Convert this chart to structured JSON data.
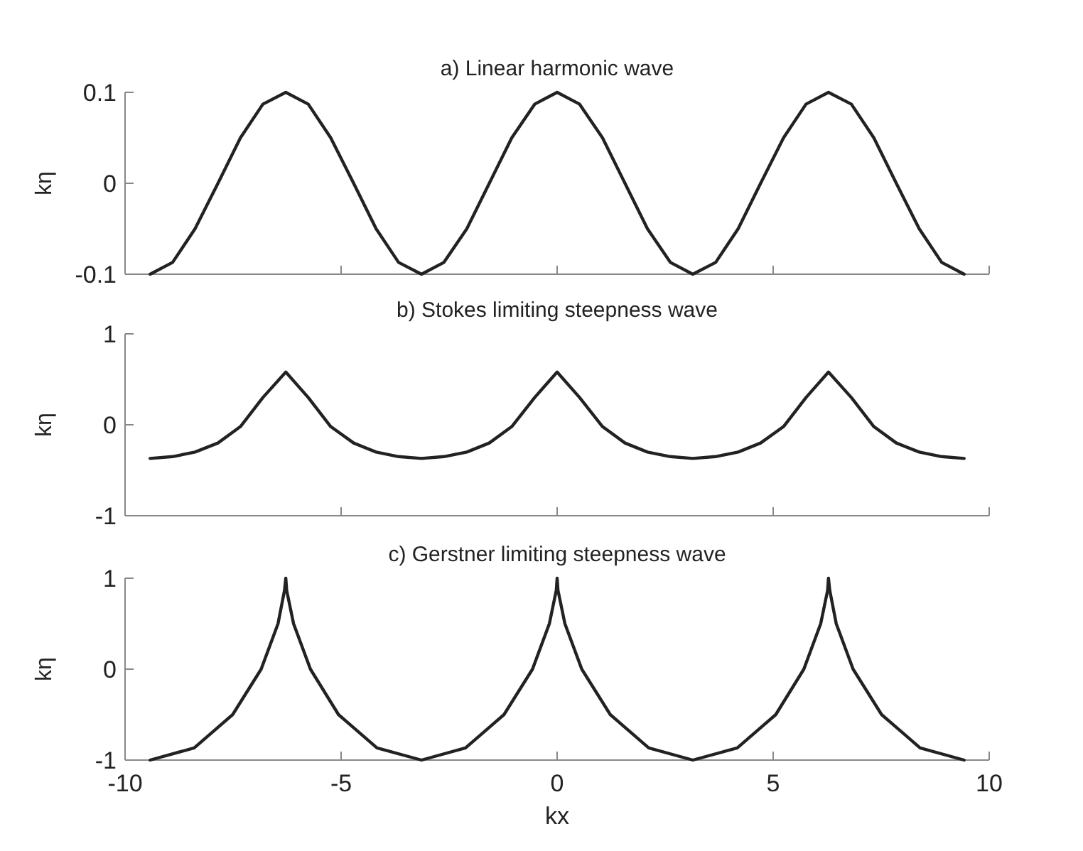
{
  "chart_data": [
    {
      "type": "line",
      "title": "a) Linear harmonic wave",
      "ylabel": "kη",
      "xlim": [
        -10,
        10
      ],
      "xticks": [
        -10,
        -5,
        0,
        5,
        10
      ],
      "ylim": [
        -0.1,
        0.1
      ],
      "yticks": [
        -0.1,
        0,
        0.1
      ],
      "tick_labels": "y",
      "series": [
        {
          "color": "#222222",
          "x": [
            -9.42,
            -8.9,
            -8.38,
            -7.85,
            -7.33,
            -6.81,
            -6.28,
            -5.76,
            -5.24,
            -4.71,
            -4.19,
            -3.67,
            -3.14,
            -2.62,
            -2.09,
            -1.57,
            -1.05,
            -0.52,
            0,
            0.52,
            1.05,
            1.57,
            2.09,
            2.62,
            3.14,
            3.67,
            4.19,
            4.71,
            5.24,
            5.76,
            6.28,
            6.81,
            7.33,
            7.85,
            8.38,
            8.9,
            9.42
          ],
          "values": [
            -0.1,
            -0.087,
            -0.05,
            0,
            0.05,
            0.087,
            0.1,
            0.087,
            0.05,
            0,
            -0.05,
            -0.087,
            -0.1,
            -0.087,
            -0.05,
            0,
            0.05,
            0.087,
            0.1,
            0.087,
            0.05,
            0,
            -0.05,
            -0.087,
            -0.1,
            -0.087,
            -0.05,
            0,
            0.05,
            0.087,
            0.1,
            0.087,
            0.05,
            0,
            -0.05,
            -0.087,
            -0.1
          ]
        }
      ]
    },
    {
      "type": "line",
      "title": "b) Stokes limiting steepness wave",
      "ylabel": "kη",
      "xlim": [
        -10,
        10
      ],
      "xticks": [
        -10,
        -5,
        0,
        5,
        10
      ],
      "ylim": [
        -1,
        1
      ],
      "yticks": [
        -1,
        0,
        1
      ],
      "tick_labels": "y",
      "series": [
        {
          "color": "#222222",
          "x": [
            -9.42,
            -8.9,
            -8.38,
            -7.85,
            -7.33,
            -6.81,
            -6.28,
            -5.76,
            -5.24,
            -4.71,
            -4.19,
            -3.67,
            -3.14,
            -2.62,
            -2.09,
            -1.57,
            -1.05,
            -0.52,
            0,
            0.52,
            1.05,
            1.57,
            2.09,
            2.62,
            3.14,
            3.67,
            4.19,
            4.71,
            5.24,
            5.76,
            6.28,
            6.81,
            7.33,
            7.85,
            8.38,
            8.9,
            9.42
          ],
          "values": [
            -0.37,
            -0.35,
            -0.3,
            -0.2,
            -0.02,
            0.3,
            0.58,
            0.3,
            -0.02,
            -0.2,
            -0.3,
            -0.35,
            -0.37,
            -0.35,
            -0.3,
            -0.2,
            -0.02,
            0.3,
            0.58,
            0.3,
            -0.02,
            -0.2,
            -0.3,
            -0.35,
            -0.37,
            -0.35,
            -0.3,
            -0.2,
            -0.02,
            0.3,
            0.58,
            0.3,
            -0.02,
            -0.2,
            -0.3,
            -0.35,
            -0.37
          ]
        }
      ]
    },
    {
      "type": "line",
      "title": "c) Gerstner limiting steepness wave",
      "xlabel": "kx",
      "ylabel": "kη",
      "xlim": [
        -10,
        10
      ],
      "xticks": [
        -10,
        -5,
        0,
        5,
        10
      ],
      "ylim": [
        -1,
        1
      ],
      "yticks": [
        -1,
        0,
        1
      ],
      "series": [
        {
          "color": "#222222",
          "x": [
            -9.42,
            -8.4,
            -7.51,
            -6.85,
            -6.46,
            -6.31,
            -6.28,
            -6.26,
            -6.1,
            -5.71,
            -5.06,
            -4.17,
            -3.14,
            -2.12,
            -1.23,
            -0.57,
            -0.18,
            -0.02,
            0,
            0.02,
            0.18,
            0.57,
            1.23,
            2.12,
            3.14,
            4.17,
            5.06,
            5.71,
            6.1,
            6.26,
            6.28,
            6.31,
            6.46,
            6.85,
            7.51,
            8.4,
            9.42
          ],
          "values": [
            -1,
            -0.866,
            -0.5,
            0,
            0.5,
            0.866,
            1,
            0.866,
            0.5,
            0,
            -0.5,
            -0.866,
            -1,
            -0.866,
            -0.5,
            0,
            0.5,
            0.866,
            1,
            0.866,
            0.5,
            0,
            -0.5,
            -0.866,
            -1,
            -0.866,
            -0.5,
            0,
            0.5,
            0.866,
            1,
            0.866,
            0.5,
            0,
            -0.5,
            -0.866,
            -1
          ]
        }
      ]
    }
  ]
}
